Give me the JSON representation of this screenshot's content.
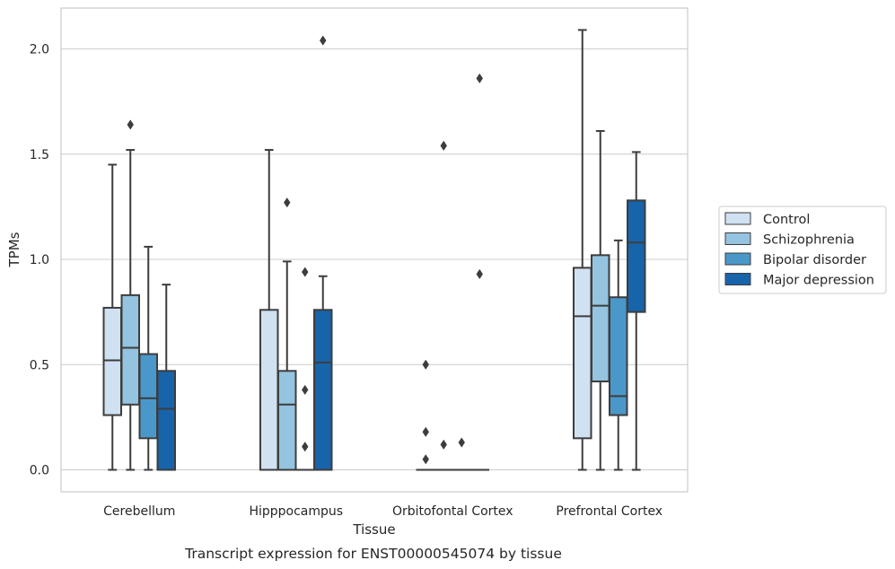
{
  "caption": "Transcript expression for ENST00000545074 by tissue",
  "chart_data": {
    "type": "box",
    "xlabel": "Tissue",
    "ylabel": "TPMs",
    "ylim": [
      -0.1,
      2.2
    ],
    "yticks": [
      "0.0",
      "0.5",
      "1.0",
      "1.5",
      "2.0"
    ],
    "categories": [
      "Cerebellum",
      "Hipppocampus",
      "Orbitofontal Cortex",
      "Prefrontal Cortex"
    ],
    "legend_position": "right",
    "grid": "horizontal",
    "series": [
      {
        "name": "Control",
        "color": "#d0e1f2",
        "boxes": [
          {
            "whislo": 0.0,
            "q1": 0.26,
            "med": 0.52,
            "q3": 0.77,
            "whishi": 1.45,
            "fliers": []
          },
          {
            "whislo": 0.0,
            "q1": 0.0,
            "med": 0.0,
            "q3": 0.76,
            "whishi": 1.52,
            "fliers": []
          },
          {
            "whislo": 0.0,
            "q1": 0.0,
            "med": 0.0,
            "q3": 0.0,
            "whishi": 0.0,
            "fliers": [
              0.5,
              0.18,
              0.05
            ]
          },
          {
            "whislo": 0.0,
            "q1": 0.15,
            "med": 0.73,
            "q3": 0.96,
            "whishi": 2.09,
            "fliers": []
          }
        ]
      },
      {
        "name": "Schizophrenia",
        "color": "#94c4df",
        "boxes": [
          {
            "whislo": 0.0,
            "q1": 0.31,
            "med": 0.58,
            "q3": 0.83,
            "whishi": 1.52,
            "fliers": [
              1.64
            ]
          },
          {
            "whislo": 0.0,
            "q1": 0.0,
            "med": 0.31,
            "q3": 0.47,
            "whishi": 0.99,
            "fliers": [
              1.27
            ]
          },
          {
            "whislo": 0.0,
            "q1": 0.0,
            "med": 0.0,
            "q3": 0.0,
            "whishi": 0.0,
            "fliers": [
              1.54,
              0.12
            ]
          },
          {
            "whislo": 0.0,
            "q1": 0.42,
            "med": 0.78,
            "q3": 1.02,
            "whishi": 1.61,
            "fliers": []
          }
        ]
      },
      {
        "name": "Bipolar disorder",
        "color": "#4a98c9",
        "boxes": [
          {
            "whislo": 0.0,
            "q1": 0.15,
            "med": 0.34,
            "q3": 0.55,
            "whishi": 1.06,
            "fliers": []
          },
          {
            "whislo": 0.0,
            "q1": 0.0,
            "med": 0.0,
            "q3": 0.0,
            "whishi": 0.0,
            "fliers": [
              0.94,
              0.38,
              0.11
            ]
          },
          {
            "whislo": 0.0,
            "q1": 0.0,
            "med": 0.0,
            "q3": 0.0,
            "whishi": 0.0,
            "fliers": [
              0.13
            ]
          },
          {
            "whislo": 0.0,
            "q1": 0.26,
            "med": 0.35,
            "q3": 0.82,
            "whishi": 1.09,
            "fliers": []
          }
        ]
      },
      {
        "name": "Major depression",
        "color": "#1764ab",
        "boxes": [
          {
            "whislo": 0.0,
            "q1": 0.0,
            "med": 0.29,
            "q3": 0.47,
            "whishi": 0.88,
            "fliers": []
          },
          {
            "whislo": 0.0,
            "q1": 0.0,
            "med": 0.51,
            "q3": 0.76,
            "whishi": 0.92,
            "fliers": [
              2.04
            ]
          },
          {
            "whislo": 0.0,
            "q1": 0.0,
            "med": 0.0,
            "q3": 0.0,
            "whishi": 0.0,
            "fliers": [
              1.86,
              0.93
            ]
          },
          {
            "whislo": 0.0,
            "q1": 0.75,
            "med": 1.08,
            "q3": 1.28,
            "whishi": 1.51,
            "fliers": []
          }
        ]
      }
    ]
  }
}
